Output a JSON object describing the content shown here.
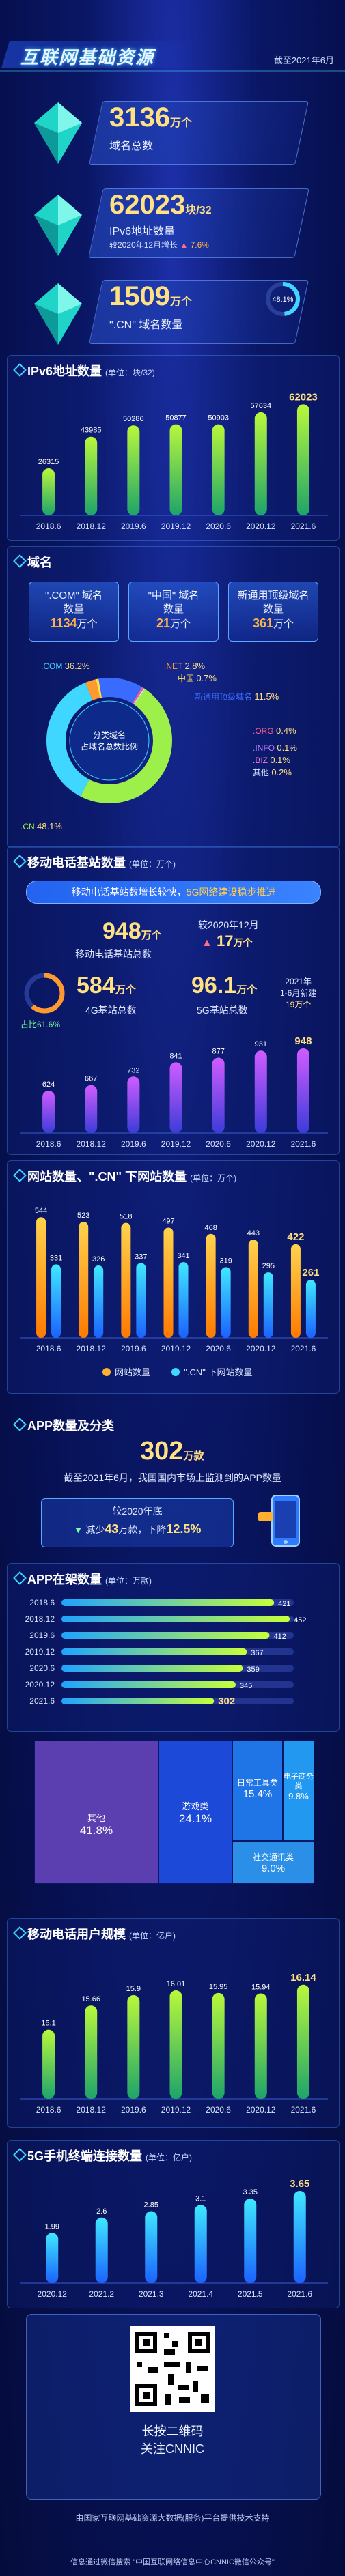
{
  "header": {
    "title": "互联网基础资源",
    "date": "截至2021年6月"
  },
  "kpis": [
    {
      "value": "3136",
      "unit": "万个",
      "label": "域名总数"
    },
    {
      "value": "62023",
      "unit": "块/32",
      "label": "IPv6地址数量",
      "growth_text": "较2020年12月增长",
      "growth": "7.6%"
    },
    {
      "value": "1509",
      "unit": "万个",
      "label": "\".CN\" 域名数量",
      "share": "48.1%"
    }
  ],
  "ipv6": {
    "title": "IPv6地址数量",
    "unit": "(单位：块/32)"
  },
  "domain": {
    "title": "域名",
    "boxes": [
      {
        "label": "\".COM\" 域名",
        "sub_label": "数量",
        "value": "1134",
        "unit": "万个"
      },
      {
        "label": "\"中国\" 域名",
        "sub_label": "数量",
        "value": "21",
        "unit": "万个"
      },
      {
        "label": "新通用顶级域名",
        "sub_label": "数量",
        "value": "361",
        "unit": "万个"
      }
    ],
    "donut_center": "分类域名占域名总数比例"
  },
  "mobile_base": {
    "title": "移动电话基站数量",
    "unit": "(单位：万个)",
    "banner_pre": "移动电话基站数增长较快，",
    "banner_hi": "5G网络建设稳步推进",
    "total": "948",
    "total_unit": "万个",
    "total_label": "移动电话基站总数",
    "change_label": "较2020年12月",
    "change_value": "17",
    "change_unit": "万个",
    "b4g": "584",
    "b4g_unit": "万个",
    "b4g_label": "4G基站总数",
    "b4g_pct": "占比61.6%",
    "b5g": "96.1",
    "b5g_unit": "万个",
    "b5g_label": "5G基站总数",
    "b5g_note1": "2021年",
    "b5g_note2": "1-6月新建",
    "b5g_note3": "19万个"
  },
  "websites": {
    "title": "网站数量、\".CN\" 下网站数量",
    "unit": "(单位：万个)",
    "legend1": "网站数量",
    "legend2": "\".CN\" 下网站数量"
  },
  "apps": {
    "title": "APP数量及分类",
    "total": "302",
    "total_unit": "万款",
    "desc": "截至2021年6月，我国国内市场上监测到的APP数量",
    "change_title": "较2020年底",
    "change_pre": "减少",
    "change_value": "43",
    "change_mid": "万款，下降",
    "change_pct": "12.5%"
  },
  "app_bar": {
    "title": "APP在架数量",
    "unit": "(单位：万款)"
  },
  "treemap": [
    {
      "name": "其他",
      "pct": "41.8%"
    },
    {
      "name": "游戏类",
      "pct": "24.1%"
    },
    {
      "name": "日常工具类",
      "pct": "15.4%"
    },
    {
      "name": "电子商务类",
      "pct": "9.8%"
    },
    {
      "name": "社交通讯类",
      "pct": "9.0%"
    }
  ],
  "mobile_users": {
    "title": "移动电话用户规模",
    "unit": "(单位：亿户)"
  },
  "g5": {
    "title": "5G手机终端连接数量",
    "unit": "(单位：亿户)"
  },
  "qr": {
    "line1": "长按二维码",
    "line2": "关注CNNIC"
  },
  "footer": {
    "line1": "由国家互联网基础资源大数据(服务)平台提供技术支持",
    "line2": "信息通过微信搜索 \"中国互联网络信息中心CNNIC微信公众号\""
  },
  "chart_data": [
    {
      "type": "bar",
      "title": "IPv6地址数量",
      "ylabel": "块/32",
      "categories": [
        "2018.6",
        "2018.12",
        "2019.6",
        "2019.12",
        "2020.6",
        "2020.12",
        "2021.6"
      ],
      "values": [
        26315,
        43985,
        50286,
        50877,
        50903,
        57634,
        62023
      ]
    },
    {
      "type": "pie",
      "title": "分类域名占域名总数比例",
      "categories": [
        ".CN",
        ".COM",
        ".NET",
        "中国",
        "新通用顶级域名",
        ".ORG",
        ".INFO",
        ".BIZ",
        "其他"
      ],
      "values": [
        48.1,
        36.2,
        2.8,
        0.7,
        11.5,
        0.4,
        0.1,
        0.1,
        0.2
      ]
    },
    {
      "type": "bar",
      "title": "移动电话基站数量",
      "ylabel": "万个",
      "categories": [
        "2018.6",
        "2018.12",
        "2019.6",
        "2019.12",
        "2020.6",
        "2020.12",
        "2021.6"
      ],
      "values": [
        624,
        667,
        732,
        841,
        877,
        931,
        948
      ]
    },
    {
      "type": "bar",
      "title": "网站数量、\".CN\" 下网站数量",
      "categories": [
        "2018.6",
        "2018.12",
        "2019.6",
        "2019.12",
        "2020.6",
        "2020.12",
        "2021.6"
      ],
      "series": [
        {
          "name": "网站数量",
          "values": [
            544,
            523,
            518,
            497,
            468,
            443,
            422
          ]
        },
        {
          "name": "\".CN\" 下网站数量",
          "values": [
            331,
            326,
            337,
            341,
            319,
            295,
            261
          ]
        }
      ]
    },
    {
      "type": "bar",
      "title": "APP在架数量",
      "ylabel": "万款",
      "categories": [
        "2018.6",
        "2018.12",
        "2019.6",
        "2019.12",
        "2020.6",
        "2020.12",
        "2021.6"
      ],
      "values": [
        421,
        452,
        412,
        367,
        359,
        345,
        302
      ]
    },
    {
      "type": "bar",
      "title": "移动电话用户规模",
      "ylabel": "亿户",
      "categories": [
        "2018.6",
        "2018.12",
        "2019.6",
        "2019.12",
        "2020.6",
        "2020.12",
        "2021.6"
      ],
      "values": [
        15.1,
        15.66,
        15.9,
        16.01,
        15.95,
        15.94,
        16.14
      ]
    },
    {
      "type": "bar",
      "title": "5G手机终端连接数量",
      "ylabel": "亿户",
      "categories": [
        "2020.12",
        "2021.2",
        "2021.3",
        "2021.4",
        "2021.5",
        "2021.6"
      ],
      "values": [
        1.99,
        2.6,
        2.85,
        3.1,
        3.35,
        3.65
      ]
    }
  ],
  "colors": {
    "accent": "#3fd6ff",
    "gold": "#ffcf4d",
    "green": "#7dffa0",
    "bg": "#07114a"
  }
}
